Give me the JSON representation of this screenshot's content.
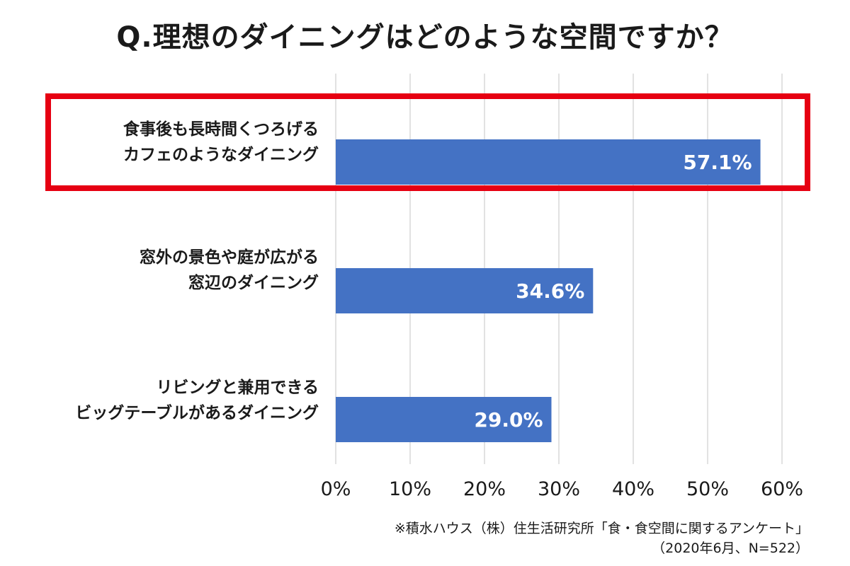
{
  "chart_data": {
    "type": "bar",
    "orientation": "horizontal",
    "title": "Q.理想のダイニングはどのような空間ですか？",
    "categories": [
      [
        "食事後も長時間くつろげる",
        "カフェのようなダイニング"
      ],
      [
        "窓外の景色や庭が広がる",
        "窓辺のダイニング"
      ],
      [
        "リビングと兼用できる",
        "ビッグテーブルがあるダイニング"
      ]
    ],
    "values": [
      57.1,
      34.6,
      29.0
    ],
    "data_labels": [
      "57.1%",
      "34.6%",
      "29.0%"
    ],
    "xlim": [
      0,
      60
    ],
    "xticks": [
      0,
      10,
      20,
      30,
      40,
      50,
      60
    ],
    "xtick_labels": [
      "0%",
      "10%",
      "20%",
      "30%",
      "40%",
      "50%",
      "60%"
    ],
    "grid": "vertical",
    "highlighted_category_index": 0,
    "bar_color": "#4472c4",
    "highlight_color": "#e60012",
    "grid_color": "#d9d9d9"
  },
  "source_note": [
    "※積水ハウス（株）住生活研究所「食・食空間に関するアンケート」",
    "（2020年6月、N=522）"
  ]
}
